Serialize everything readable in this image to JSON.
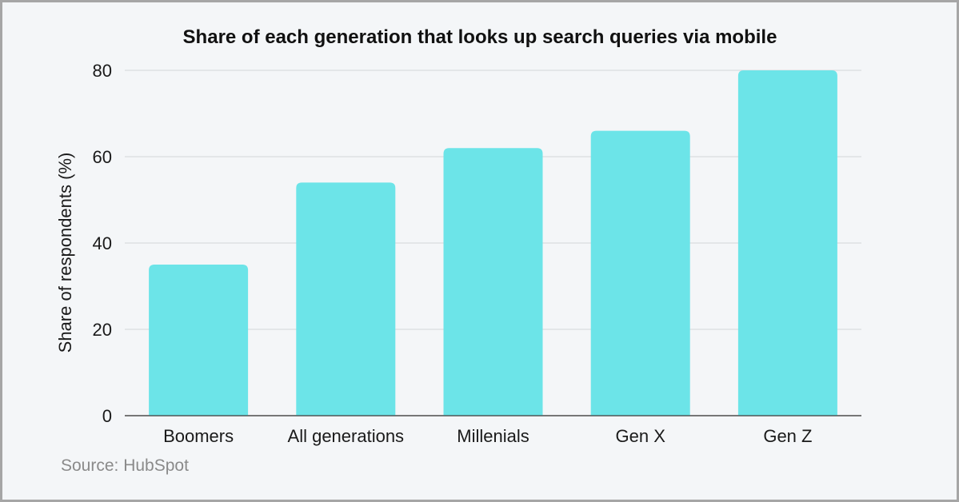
{
  "chart_data": {
    "type": "bar",
    "title": "Share of each generation that looks up search queries via mobile",
    "ylabel": "Share of respondents  (%)",
    "xlabel": "",
    "categories": [
      "Boomers",
      "All generations",
      "Millenials",
      "Gen X",
      "Gen Z"
    ],
    "values": [
      35,
      54,
      62,
      66,
      80
    ],
    "ylim": [
      0,
      80
    ],
    "yticks": [
      0,
      20,
      40,
      60,
      80
    ],
    "grid": true,
    "bar_color": "#6ce4e8"
  },
  "source": "Source: HubSpot"
}
